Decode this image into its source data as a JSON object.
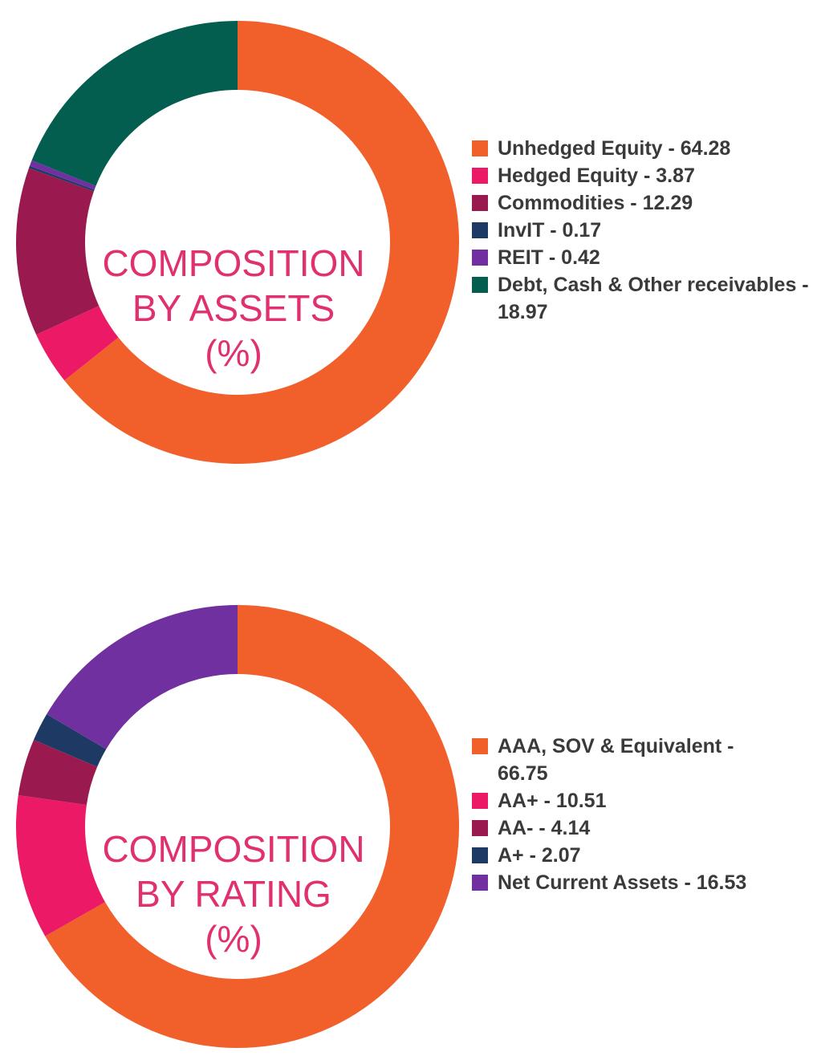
{
  "chart_data": [
    {
      "type": "pie",
      "title_lines": [
        "COMPOSITION",
        "BY ASSETS",
        "(%)"
      ],
      "series": [
        {
          "name": "Unhedged Equity",
          "value": 64.28,
          "color": "#f15f2a",
          "label": "Unhedged Equity - 64.28"
        },
        {
          "name": "Hedged Equity",
          "value": 3.87,
          "color": "#ec1966",
          "label": "Hedged Equity - 3.87"
        },
        {
          "name": "Commodities",
          "value": 12.29,
          "color": "#9a1a4f",
          "label": "Commodities - 12.29"
        },
        {
          "name": "InvIT",
          "value": 0.17,
          "color": "#1e3a64",
          "label": "InvIT - 0.17"
        },
        {
          "name": "REIT",
          "value": 0.42,
          "color": "#7030a0",
          "label": "REIT - 0.42"
        },
        {
          "name": "Debt, Cash & Other receivables",
          "value": 18.97,
          "color": "#035e50",
          "label": "Debt, Cash & Other receivables - 18.97"
        }
      ],
      "legend_position": "right"
    },
    {
      "type": "pie",
      "title_lines": [
        "COMPOSITION",
        "BY RATING",
        "(%)"
      ],
      "series": [
        {
          "name": "AAA, SOV & Equivalent",
          "value": 66.75,
          "color": "#f15f2a",
          "label": "AAA, SOV & Equivalent - 66.75"
        },
        {
          "name": "AA+",
          "value": 10.51,
          "color": "#ec1966",
          "label": "AA+ - 10.51"
        },
        {
          "name": "AA-",
          "value": 4.14,
          "color": "#9a1a4f",
          "label": "AA- - 4.14"
        },
        {
          "name": "A+",
          "value": 2.07,
          "color": "#1e3a64",
          "label": "A+ - 2.07"
        },
        {
          "name": "Net Current Assets",
          "value": 16.53,
          "color": "#7030a0",
          "label": "Net Current Assets - 16.53"
        }
      ],
      "legend_position": "right"
    }
  ]
}
